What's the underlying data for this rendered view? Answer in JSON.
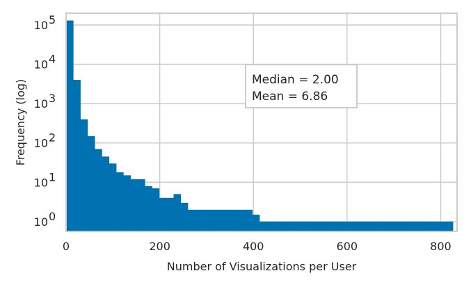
{
  "chart_data": {
    "type": "bar",
    "bin_width": 15.3,
    "x_start": 0,
    "values": [
      130000,
      4000,
      400,
      150,
      70,
      45,
      30,
      18,
      15,
      12,
      12,
      8,
      7,
      4,
      4,
      5,
      3,
      2,
      2,
      2,
      2,
      2,
      2,
      2,
      2,
      2,
      1.5,
      1,
      1,
      1,
      1,
      1,
      1,
      1,
      1,
      1,
      1,
      1,
      1,
      1,
      1,
      1,
      1,
      1,
      1,
      1,
      1,
      1,
      1,
      1,
      1,
      1,
      1,
      1
    ],
    "xlabel": "Number of Visualizations per User",
    "ylabel": "Frequency (log)",
    "xlim": [
      0,
      835
    ],
    "ylim_log10": [
      -0.25,
      5.3
    ],
    "y_scale": "log",
    "x_ticks": [
      0,
      200,
      400,
      600,
      800
    ],
    "y_ticks": [
      {
        "value": 1,
        "base": "10",
        "exp": "0"
      },
      {
        "value": 10,
        "base": "10",
        "exp": "1"
      },
      {
        "value": 100,
        "base": "10",
        "exp": "2"
      },
      {
        "value": 1000,
        "base": "10",
        "exp": "3"
      },
      {
        "value": 10000,
        "base": "10",
        "exp": "4"
      },
      {
        "value": 100000,
        "base": "10",
        "exp": "5"
      }
    ],
    "grid": true,
    "bar_color": "#0072B2",
    "grid_color": "#cccccc",
    "annotation": {
      "lines": [
        "Median = 2.00",
        "Mean = 6.86"
      ],
      "position": "upper-center-right"
    }
  }
}
